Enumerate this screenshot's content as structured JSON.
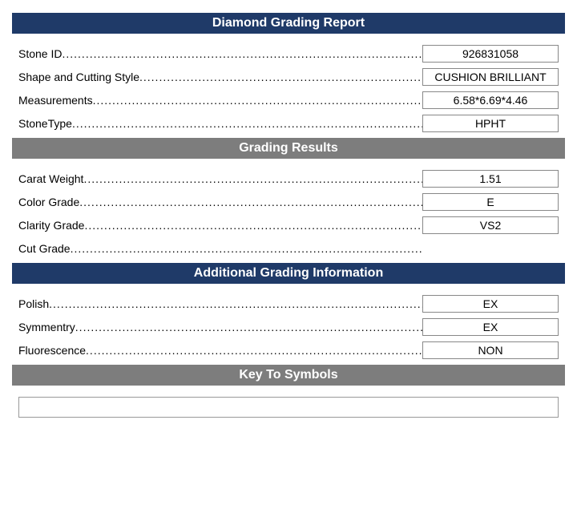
{
  "colors": {
    "navy": "#1f3a68",
    "gray": "#7d7d7d",
    "border": "#888888",
    "text": "#000000",
    "bg": "#ffffff"
  },
  "sections": [
    {
      "title": "Diamond Grading Report",
      "header_class": "header-navy",
      "rows": [
        {
          "label": "Stone ID",
          "value": "926831058"
        },
        {
          "label": "Shape and Cutting Style",
          "value": "CUSHION BRILLIANT"
        },
        {
          "label": "Measurements",
          "value": "6.58*6.69*4.46"
        },
        {
          "label": "StoneType",
          "value": "HPHT"
        }
      ]
    },
    {
      "title": "Grading Results",
      "header_class": "header-gray",
      "rows": [
        {
          "label": "Carat Weight",
          "value": "1.51"
        },
        {
          "label": "Color Grade",
          "value": "E"
        },
        {
          "label": "Clarity Grade",
          "value": "VS2"
        },
        {
          "label": "Cut Grade",
          "value": ""
        }
      ]
    },
    {
      "title": "Additional Grading Information",
      "header_class": "header-navy",
      "rows": [
        {
          "label": "Polish",
          "value": "EX"
        },
        {
          "label": "Symmentry",
          "value": "EX"
        },
        {
          "label": "Fluorescence",
          "value": "NON"
        }
      ]
    }
  ],
  "footer": {
    "title": "Key To Symbols",
    "header_class": "header-gray"
  }
}
